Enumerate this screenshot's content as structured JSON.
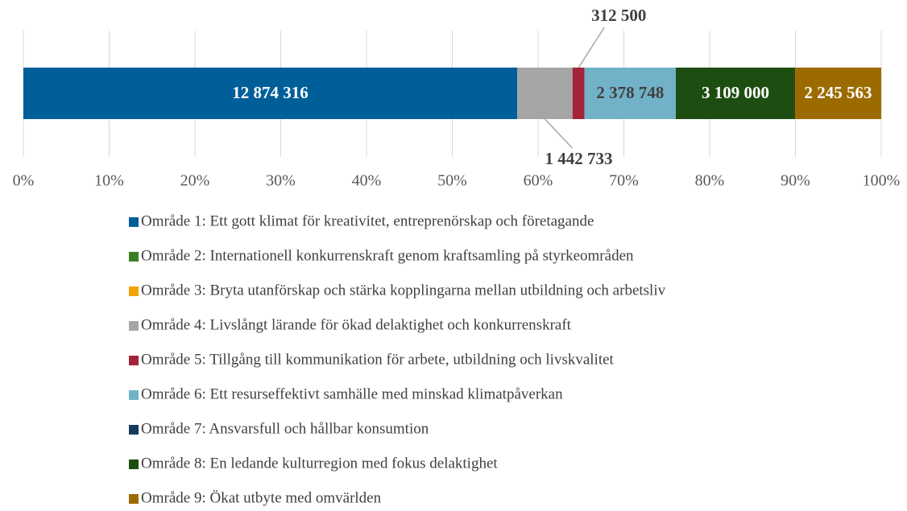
{
  "chart_data": {
    "type": "stacked_bar_100",
    "series": [
      {
        "name": "Område 1: Ett gott klimat för kreativitet, entreprenörskap och företagande",
        "color": "#005f99",
        "values": [
          12874316
        ],
        "value_labels": [
          "12 874 316"
        ]
      },
      {
        "name": "Område 2: Internationell konkurrenskraft genom kraftsamling på styrkeområden",
        "color": "#3b7d23",
        "values": [
          0
        ],
        "value_labels": [
          null
        ]
      },
      {
        "name": "Område 3: Bryta utanförskap och stärka kopplingarna mellan utbildning och arbetsliv",
        "color": "#f0a30a",
        "values": [
          0
        ],
        "value_labels": [
          null
        ]
      },
      {
        "name": "Område 4: Livslångt lärande för ökad delaktighet och konkurrenskraft",
        "color": "#a5a5a5",
        "values": [
          1442733
        ],
        "value_labels": [
          "1 442 733"
        ]
      },
      {
        "name": "Område 5: Tillgång till kommunikation för arbete, utbildning och livskvalitet",
        "color": "#a4243b",
        "values": [
          312500
        ],
        "value_labels": [
          "312 500"
        ]
      },
      {
        "name": "Område 6: Ett resurseffektivt samhälle med minskad klimatpåverkan",
        "color": "#72b2c9",
        "values": [
          2378748
        ],
        "value_labels": [
          "2 378 748"
        ]
      },
      {
        "name": "Område 7: Ansvarsfull och hållbar konsumtion",
        "color": "#163a5a",
        "values": [
          0
        ],
        "value_labels": [
          null
        ]
      },
      {
        "name": "Område 8: En ledande kulturregion med fokus delaktighet",
        "color": "#1e4d12",
        "values": [
          3109000
        ],
        "value_labels": [
          "3 109 000"
        ]
      },
      {
        "name": "Område 9: Ökat utbyte med omvärlden",
        "color": "#9c6b00",
        "values": [
          2245563
        ],
        "value_labels": [
          "2 245 563"
        ]
      }
    ],
    "xlim": [
      0,
      100
    ],
    "xticks": [
      {
        "value": 0,
        "label": "0%"
      },
      {
        "value": 10,
        "label": "10%"
      },
      {
        "value": 20,
        "label": "20%"
      },
      {
        "value": 30,
        "label": "30%"
      },
      {
        "value": 40,
        "label": "40%"
      },
      {
        "value": 50,
        "label": "50%"
      },
      {
        "value": 60,
        "label": "60%"
      },
      {
        "value": 70,
        "label": "70%"
      },
      {
        "value": 80,
        "label": "80%"
      },
      {
        "value": 90,
        "label": "90%"
      },
      {
        "value": 100,
        "label": "100%"
      }
    ],
    "grid": true
  }
}
